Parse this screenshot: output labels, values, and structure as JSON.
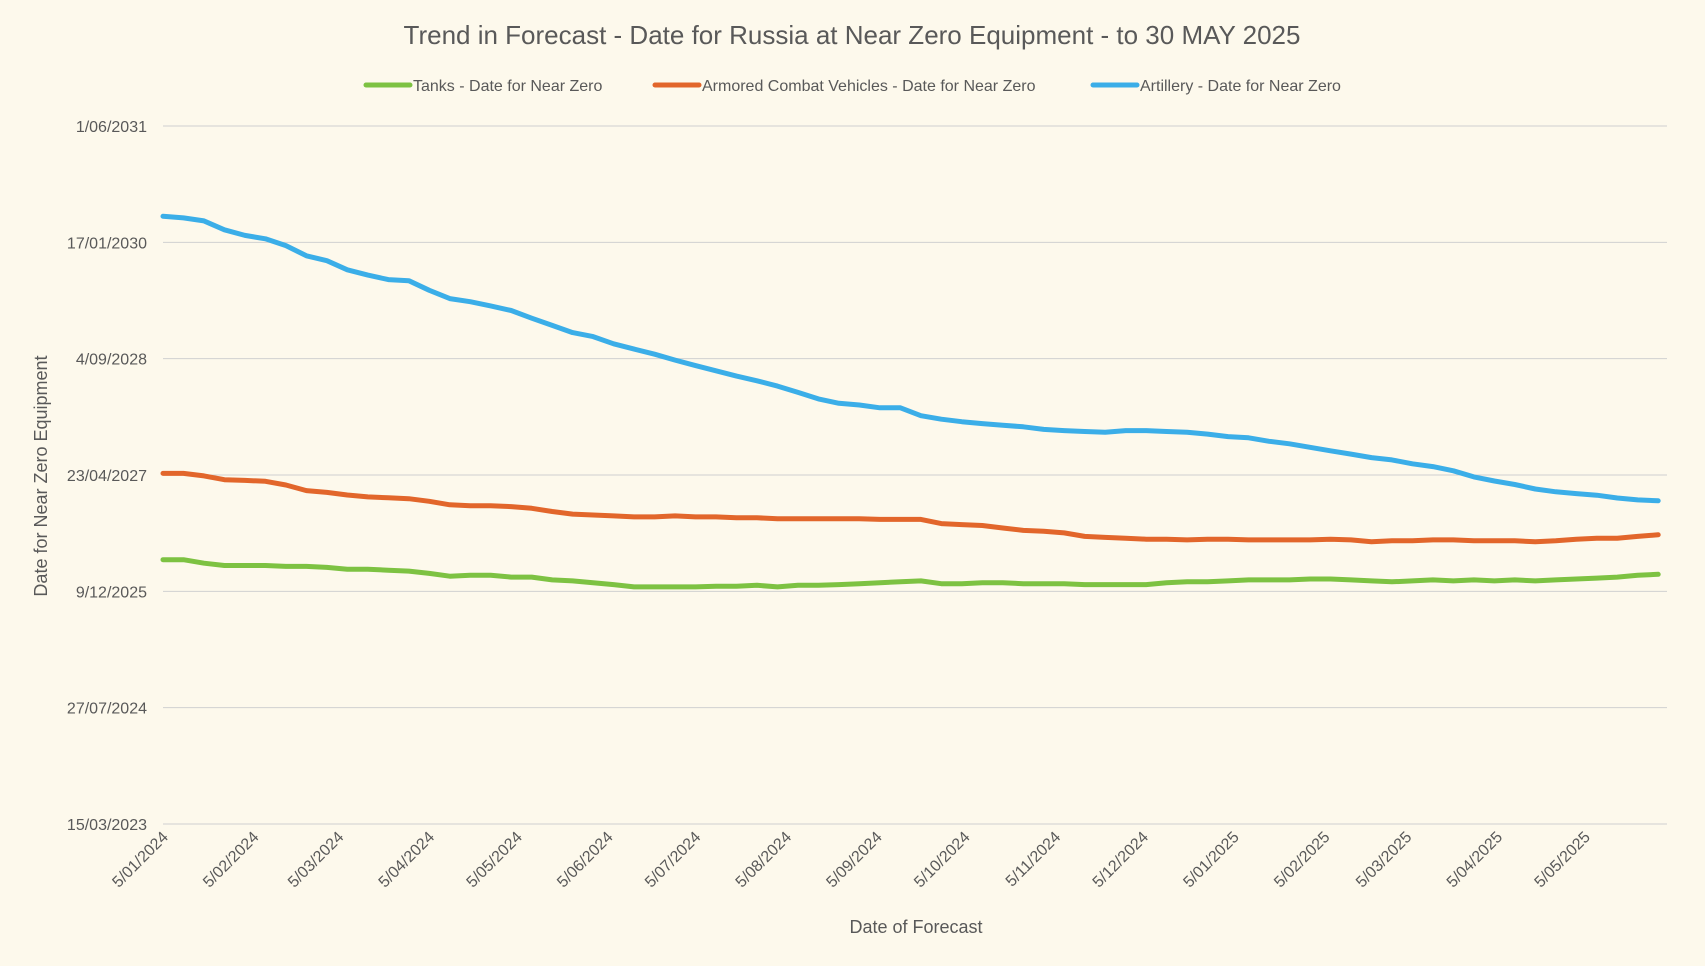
{
  "chart_data": {
    "type": "line",
    "title": "Trend in Forecast - Date for Russia at Near Zero Equipment - to 30 MAY 2025",
    "xlabel": "Date of Forecast",
    "ylabel": "Date for Near Zero Equipment",
    "x_axis": {
      "scale": "date",
      "range": [
        "2024-01-05",
        "2025-06-02"
      ],
      "tick_labels": [
        "5/01/2024",
        "5/02/2024",
        "5/03/2024",
        "5/04/2024",
        "5/05/2024",
        "5/06/2024",
        "5/07/2024",
        "5/08/2024",
        "5/09/2024",
        "5/10/2024",
        "5/11/2024",
        "5/12/2024",
        "5/01/2025",
        "5/02/2025",
        "5/03/2025",
        "5/04/2025",
        "5/05/2025"
      ],
      "tick_values": [
        "2024-01-05",
        "2024-02-05",
        "2024-03-05",
        "2024-04-05",
        "2024-05-05",
        "2024-06-05",
        "2024-07-05",
        "2024-08-05",
        "2024-09-05",
        "2024-10-05",
        "2024-11-05",
        "2024-12-05",
        "2025-01-05",
        "2025-02-05",
        "2025-03-05",
        "2025-04-05",
        "2025-05-05"
      ]
    },
    "y_axis": {
      "scale": "date",
      "range": [
        "2023-03-15",
        "2031-06-01"
      ],
      "tick_labels": [
        "15/03/2023",
        "27/07/2024",
        "9/12/2025",
        "23/04/2027",
        "4/09/2028",
        "17/01/2030",
        "1/06/2031"
      ],
      "tick_values": [
        "2023-03-15",
        "2024-07-27",
        "2025-12-09",
        "2027-04-23",
        "2028-09-04",
        "2030-01-17",
        "2031-06-01"
      ]
    },
    "grid": true,
    "legend": {
      "position": "top"
    },
    "series": [
      {
        "name": "Tanks - Date for Near Zero",
        "color": "#7dc242",
        "points": [
          [
            "2024-01-05",
            "2026-04-24"
          ],
          [
            "2024-01-12",
            "2026-04-24"
          ],
          [
            "2024-01-19",
            "2026-04-09"
          ],
          [
            "2024-01-26",
            "2026-03-30"
          ],
          [
            "2024-02-02",
            "2026-03-30"
          ],
          [
            "2024-02-09",
            "2026-03-30"
          ],
          [
            "2024-02-16",
            "2026-03-26"
          ],
          [
            "2024-02-23",
            "2026-03-26"
          ],
          [
            "2024-03-01",
            "2026-03-22"
          ],
          [
            "2024-03-08",
            "2026-03-14"
          ],
          [
            "2024-03-15",
            "2026-03-14"
          ],
          [
            "2024-03-22",
            "2026-03-10"
          ],
          [
            "2024-03-29",
            "2026-03-06"
          ],
          [
            "2024-04-05",
            "2026-02-24"
          ],
          [
            "2024-04-12",
            "2026-02-12"
          ],
          [
            "2024-04-19",
            "2026-02-16"
          ],
          [
            "2024-04-26",
            "2026-02-16"
          ],
          [
            "2024-05-03",
            "2026-02-08"
          ],
          [
            "2024-05-10",
            "2026-02-08"
          ],
          [
            "2024-05-17",
            "2026-01-27"
          ],
          [
            "2024-05-24",
            "2026-01-23"
          ],
          [
            "2024-05-31",
            "2026-01-15"
          ],
          [
            "2024-06-07",
            "2026-01-07"
          ],
          [
            "2024-06-14",
            "2025-12-28"
          ],
          [
            "2024-06-21",
            "2025-12-28"
          ],
          [
            "2024-06-28",
            "2025-12-28"
          ],
          [
            "2024-07-05",
            "2025-12-28"
          ],
          [
            "2024-07-12",
            "2025-12-31"
          ],
          [
            "2024-07-19",
            "2025-12-31"
          ],
          [
            "2024-07-26",
            "2026-01-04"
          ],
          [
            "2024-08-02",
            "2025-12-28"
          ],
          [
            "2024-08-09",
            "2026-01-04"
          ],
          [
            "2024-08-16",
            "2026-01-04"
          ],
          [
            "2024-08-23",
            "2026-01-07"
          ],
          [
            "2024-08-30",
            "2026-01-11"
          ],
          [
            "2024-09-06",
            "2026-01-15"
          ],
          [
            "2024-09-13",
            "2026-01-19"
          ],
          [
            "2024-09-20",
            "2026-01-23"
          ],
          [
            "2024-09-27",
            "2026-01-11"
          ],
          [
            "2024-10-04",
            "2026-01-11"
          ],
          [
            "2024-10-11",
            "2026-01-15"
          ],
          [
            "2024-10-18",
            "2026-01-15"
          ],
          [
            "2024-10-25",
            "2026-01-11"
          ],
          [
            "2024-11-01",
            "2026-01-11"
          ],
          [
            "2024-11-08",
            "2026-01-11"
          ],
          [
            "2024-11-15",
            "2026-01-07"
          ],
          [
            "2024-11-22",
            "2026-01-07"
          ],
          [
            "2024-11-29",
            "2026-01-07"
          ],
          [
            "2024-12-06",
            "2026-01-07"
          ],
          [
            "2024-12-13",
            "2026-01-15"
          ],
          [
            "2024-12-20",
            "2026-01-19"
          ],
          [
            "2024-12-27",
            "2026-01-19"
          ],
          [
            "2025-01-03",
            "2026-01-23"
          ],
          [
            "2025-01-10",
            "2026-01-27"
          ],
          [
            "2025-01-17",
            "2026-01-27"
          ],
          [
            "2025-01-24",
            "2026-01-27"
          ],
          [
            "2025-01-31",
            "2026-01-31"
          ],
          [
            "2025-02-07",
            "2026-01-31"
          ],
          [
            "2025-02-14",
            "2026-01-27"
          ],
          [
            "2025-02-21",
            "2026-01-23"
          ],
          [
            "2025-02-28",
            "2026-01-19"
          ],
          [
            "2025-03-07",
            "2026-01-23"
          ],
          [
            "2025-03-14",
            "2026-01-27"
          ],
          [
            "2025-03-21",
            "2026-01-23"
          ],
          [
            "2025-03-28",
            "2026-01-27"
          ],
          [
            "2025-04-04",
            "2026-01-23"
          ],
          [
            "2025-04-11",
            "2026-01-27"
          ],
          [
            "2025-04-18",
            "2026-01-23"
          ],
          [
            "2025-04-25",
            "2026-01-27"
          ],
          [
            "2025-05-02",
            "2026-01-31"
          ],
          [
            "2025-05-09",
            "2026-02-04"
          ],
          [
            "2025-05-16",
            "2026-02-08"
          ],
          [
            "2025-05-23",
            "2026-02-16"
          ],
          [
            "2025-05-30",
            "2026-02-20"
          ]
        ]
      },
      {
        "name": "Armored Combat Vehicles - Date for Near Zero",
        "color": "#e2662b",
        "points": [
          [
            "2024-01-05",
            "2027-04-30"
          ],
          [
            "2024-01-12",
            "2027-04-30"
          ],
          [
            "2024-01-19",
            "2027-04-19"
          ],
          [
            "2024-01-26",
            "2027-04-03"
          ],
          [
            "2024-02-02",
            "2027-03-31"
          ],
          [
            "2024-02-09",
            "2027-03-27"
          ],
          [
            "2024-02-16",
            "2027-03-11"
          ],
          [
            "2024-02-23",
            "2027-02-15"
          ],
          [
            "2024-03-01",
            "2027-02-07"
          ],
          [
            "2024-03-08",
            "2027-01-27"
          ],
          [
            "2024-03-15",
            "2027-01-19"
          ],
          [
            "2024-03-22",
            "2027-01-15"
          ],
          [
            "2024-03-29",
            "2027-01-11"
          ],
          [
            "2024-04-05",
            "2026-12-31"
          ],
          [
            "2024-04-12",
            "2026-12-16"
          ],
          [
            "2024-04-19",
            "2026-12-12"
          ],
          [
            "2024-04-26",
            "2026-12-12"
          ],
          [
            "2024-05-03",
            "2026-12-08"
          ],
          [
            "2024-05-10",
            "2026-12-01"
          ],
          [
            "2024-05-17",
            "2026-11-17"
          ],
          [
            "2024-05-24",
            "2026-11-06"
          ],
          [
            "2024-05-31",
            "2026-11-02"
          ],
          [
            "2024-06-07",
            "2026-10-29"
          ],
          [
            "2024-06-14",
            "2026-10-25"
          ],
          [
            "2024-06-21",
            "2026-10-25"
          ],
          [
            "2024-06-28",
            "2026-10-29"
          ],
          [
            "2024-07-05",
            "2026-10-25"
          ],
          [
            "2024-07-12",
            "2026-10-25"
          ],
          [
            "2024-07-19",
            "2026-10-21"
          ],
          [
            "2024-07-26",
            "2026-10-21"
          ],
          [
            "2024-08-02",
            "2026-10-17"
          ],
          [
            "2024-08-09",
            "2026-10-17"
          ],
          [
            "2024-08-16",
            "2026-10-17"
          ],
          [
            "2024-08-23",
            "2026-10-17"
          ],
          [
            "2024-08-30",
            "2026-10-17"
          ],
          [
            "2024-09-06",
            "2026-10-14"
          ],
          [
            "2024-09-13",
            "2026-10-14"
          ],
          [
            "2024-09-20",
            "2026-10-14"
          ],
          [
            "2024-09-27",
            "2026-09-26"
          ],
          [
            "2024-10-04",
            "2026-09-22"
          ],
          [
            "2024-10-11",
            "2026-09-18"
          ],
          [
            "2024-10-18",
            "2026-09-07"
          ],
          [
            "2024-10-25",
            "2026-08-28"
          ],
          [
            "2024-11-01",
            "2026-08-24"
          ],
          [
            "2024-11-08",
            "2026-08-17"
          ],
          [
            "2024-11-15",
            "2026-08-02"
          ],
          [
            "2024-11-22",
            "2026-07-29"
          ],
          [
            "2024-11-29",
            "2026-07-25"
          ],
          [
            "2024-12-06",
            "2026-07-21"
          ],
          [
            "2024-12-13",
            "2026-07-21"
          ],
          [
            "2024-12-20",
            "2026-07-18"
          ],
          [
            "2024-12-27",
            "2026-07-21"
          ],
          [
            "2025-01-03",
            "2026-07-21"
          ],
          [
            "2025-01-10",
            "2026-07-18"
          ],
          [
            "2025-01-17",
            "2026-07-18"
          ],
          [
            "2025-01-24",
            "2026-07-18"
          ],
          [
            "2025-01-31",
            "2026-07-18"
          ],
          [
            "2025-02-07",
            "2026-07-21"
          ],
          [
            "2025-02-14",
            "2026-07-18"
          ],
          [
            "2025-02-21",
            "2026-07-10"
          ],
          [
            "2025-02-28",
            "2026-07-14"
          ],
          [
            "2025-03-07",
            "2026-07-14"
          ],
          [
            "2025-03-14",
            "2026-07-18"
          ],
          [
            "2025-03-21",
            "2026-07-18"
          ],
          [
            "2025-03-28",
            "2026-07-14"
          ],
          [
            "2025-04-04",
            "2026-07-14"
          ],
          [
            "2025-04-11",
            "2026-07-14"
          ],
          [
            "2025-04-18",
            "2026-07-10"
          ],
          [
            "2025-04-25",
            "2026-07-14"
          ],
          [
            "2025-05-02",
            "2026-07-21"
          ],
          [
            "2025-05-09",
            "2026-07-25"
          ],
          [
            "2025-05-16",
            "2026-07-25"
          ],
          [
            "2025-05-23",
            "2026-08-02"
          ],
          [
            "2025-05-30",
            "2026-08-09"
          ]
        ]
      },
      {
        "name": "Artillery - Date for Near Zero",
        "color": "#3baee8",
        "points": [
          [
            "2024-01-05",
            "2030-05-09"
          ],
          [
            "2024-01-12",
            "2030-05-02"
          ],
          [
            "2024-01-19",
            "2030-04-19"
          ],
          [
            "2024-01-26",
            "2030-03-12"
          ],
          [
            "2024-02-02",
            "2030-02-16"
          ],
          [
            "2024-02-09",
            "2030-02-01"
          ],
          [
            "2024-02-16",
            "2030-01-03"
          ],
          [
            "2024-02-23",
            "2029-11-20"
          ],
          [
            "2024-03-01",
            "2029-10-30"
          ],
          [
            "2024-03-08",
            "2029-09-21"
          ],
          [
            "2024-03-15",
            "2029-08-29"
          ],
          [
            "2024-03-22",
            "2029-08-10"
          ],
          [
            "2024-03-29",
            "2029-08-05"
          ],
          [
            "2024-04-05",
            "2029-06-25"
          ],
          [
            "2024-04-12",
            "2029-05-20"
          ],
          [
            "2024-04-19",
            "2029-05-07"
          ],
          [
            "2024-04-26",
            "2029-04-19"
          ],
          [
            "2024-05-03",
            "2029-03-30"
          ],
          [
            "2024-05-10",
            "2029-02-25"
          ],
          [
            "2024-05-17",
            "2029-01-25"
          ],
          [
            "2024-05-24",
            "2028-12-25"
          ],
          [
            "2024-05-31",
            "2028-12-08"
          ],
          [
            "2024-06-07",
            "2028-11-07"
          ],
          [
            "2024-06-14",
            "2028-10-15"
          ],
          [
            "2024-06-21",
            "2028-09-23"
          ],
          [
            "2024-06-28",
            "2028-08-29"
          ],
          [
            "2024-07-05",
            "2028-08-05"
          ],
          [
            "2024-07-12",
            "2028-07-14"
          ],
          [
            "2024-07-19",
            "2028-06-21"
          ],
          [
            "2024-07-26",
            "2028-06-01"
          ],
          [
            "2024-08-02",
            "2028-05-09"
          ],
          [
            "2024-08-09",
            "2028-04-12"
          ],
          [
            "2024-08-16",
            "2028-03-15"
          ],
          [
            "2024-08-23",
            "2028-02-25"
          ],
          [
            "2024-08-30",
            "2028-02-18"
          ],
          [
            "2024-09-06",
            "2028-02-06"
          ],
          [
            "2024-09-13",
            "2028-02-06"
          ],
          [
            "2024-09-20",
            "2028-01-03"
          ],
          [
            "2024-09-27",
            "2027-12-19"
          ],
          [
            "2024-10-04",
            "2027-12-08"
          ],
          [
            "2024-10-11",
            "2027-11-30"
          ],
          [
            "2024-10-18",
            "2027-11-23"
          ],
          [
            "2024-10-25",
            "2027-11-16"
          ],
          [
            "2024-11-01",
            "2027-11-05"
          ],
          [
            "2024-11-08",
            "2027-10-31"
          ],
          [
            "2024-11-15",
            "2027-10-27"
          ],
          [
            "2024-11-22",
            "2027-10-24"
          ],
          [
            "2024-11-29",
            "2027-10-31"
          ],
          [
            "2024-12-06",
            "2027-10-31"
          ],
          [
            "2024-12-13",
            "2027-10-27"
          ],
          [
            "2024-12-20",
            "2027-10-24"
          ],
          [
            "2024-12-27",
            "2027-10-16"
          ],
          [
            "2025-01-03",
            "2027-10-05"
          ],
          [
            "2025-01-10",
            "2027-09-30"
          ],
          [
            "2025-01-17",
            "2027-09-15"
          ],
          [
            "2025-01-24",
            "2027-09-04"
          ],
          [
            "2025-01-31",
            "2027-08-20"
          ],
          [
            "2025-02-07",
            "2027-08-05"
          ],
          [
            "2025-02-14",
            "2027-07-22"
          ],
          [
            "2025-02-21",
            "2027-07-07"
          ],
          [
            "2025-02-28",
            "2027-06-27"
          ],
          [
            "2025-03-07",
            "2027-06-10"
          ],
          [
            "2025-03-14",
            "2027-05-29"
          ],
          [
            "2025-03-21",
            "2027-05-11"
          ],
          [
            "2025-03-28",
            "2027-04-15"
          ],
          [
            "2025-04-04",
            "2027-03-28"
          ],
          [
            "2025-04-11",
            "2027-03-13"
          ],
          [
            "2025-04-18",
            "2027-02-22"
          ],
          [
            "2025-04-25",
            "2027-02-10"
          ],
          [
            "2025-05-02",
            "2027-02-02"
          ],
          [
            "2025-05-09",
            "2027-01-26"
          ],
          [
            "2025-05-16",
            "2027-01-14"
          ],
          [
            "2025-05-23",
            "2027-01-06"
          ],
          [
            "2025-05-30",
            "2027-01-02"
          ]
        ]
      }
    ]
  }
}
